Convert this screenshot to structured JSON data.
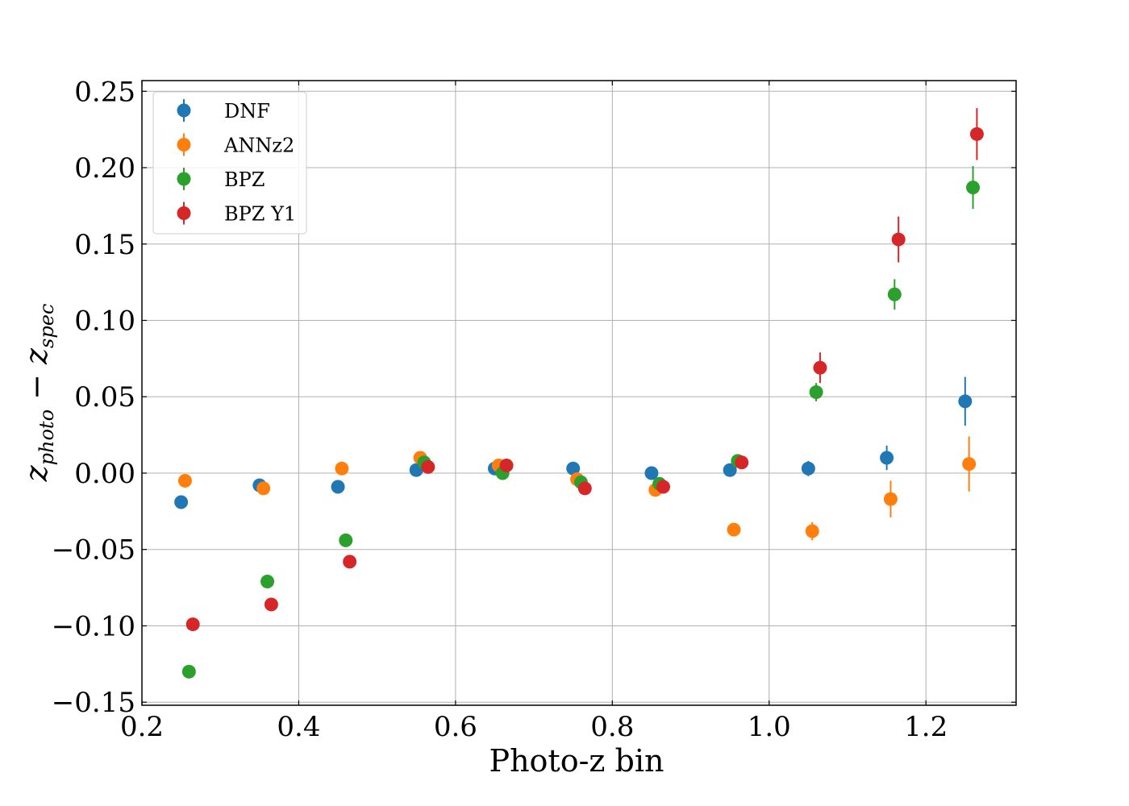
{
  "chart_data": {
    "type": "scatter",
    "title": "",
    "xlabel": "Photo-z bin",
    "ylabel": "z_photo − z_spec",
    "ylabel_main": "z",
    "ylabel_sub1": "photo",
    "ylabel_minus": " − ",
    "ylabel_main2": "z",
    "ylabel_sub2": "spec",
    "xlim": [
      0.2,
      1.315
    ],
    "ylim": [
      -0.152,
      0.257
    ],
    "xticks": [
      0.2,
      0.4,
      0.6,
      0.8,
      1.0,
      1.2
    ],
    "xtick_labels": [
      "0.2",
      "0.4",
      "0.6",
      "0.8",
      "1.0",
      "1.2"
    ],
    "yticks": [
      -0.15,
      -0.1,
      -0.05,
      0.0,
      0.05,
      0.1,
      0.15,
      0.2,
      0.25
    ],
    "ytick_labels": [
      "−0.15",
      "−0.10",
      "−0.05",
      "0.00",
      "0.05",
      "0.10",
      "0.15",
      "0.20",
      "0.25"
    ],
    "grid": true,
    "legend_position": "top-left",
    "series": [
      {
        "name": "DNF",
        "color": "#1f77b4",
        "x": [
          0.25,
          0.35,
          0.45,
          0.55,
          0.65,
          0.75,
          0.85,
          0.95,
          1.05,
          1.15,
          1.25
        ],
        "y": [
          -0.019,
          -0.008,
          -0.009,
          0.002,
          0.003,
          0.003,
          0.0,
          0.002,
          0.003,
          0.01,
          0.047
        ],
        "yerr": [
          0.002,
          0.002,
          0.002,
          0.002,
          0.002,
          0.002,
          0.002,
          0.002,
          0.005,
          0.008,
          0.016
        ]
      },
      {
        "name": "ANNz2",
        "color": "#ff7f0e",
        "x": [
          0.255,
          0.355,
          0.455,
          0.555,
          0.655,
          0.755,
          0.855,
          0.955,
          1.055,
          1.155,
          1.255
        ],
        "y": [
          -0.005,
          -0.01,
          0.003,
          0.01,
          0.005,
          -0.004,
          -0.011,
          -0.037,
          -0.038,
          -0.017,
          0.006
        ],
        "yerr": [
          0.002,
          0.002,
          0.002,
          0.002,
          0.002,
          0.002,
          0.002,
          0.003,
          0.006,
          0.012,
          0.018
        ]
      },
      {
        "name": "BPZ",
        "color": "#2ca02c",
        "x": [
          0.26,
          0.36,
          0.46,
          0.56,
          0.66,
          0.76,
          0.86,
          0.96,
          1.06,
          1.16,
          1.26
        ],
        "y": [
          -0.13,
          -0.071,
          -0.044,
          0.007,
          0.0,
          -0.006,
          -0.007,
          0.008,
          0.053,
          0.117,
          0.187
        ],
        "yerr": [
          0.002,
          0.002,
          0.002,
          0.002,
          0.002,
          0.002,
          0.002,
          0.002,
          0.006,
          0.01,
          0.014
        ]
      },
      {
        "name": "BPZ Y1",
        "color": "#d62728",
        "x": [
          0.265,
          0.365,
          0.465,
          0.565,
          0.665,
          0.765,
          0.865,
          0.965,
          1.065,
          1.165,
          1.265
        ],
        "y": [
          -0.099,
          -0.086,
          -0.058,
          0.004,
          0.005,
          -0.01,
          -0.009,
          0.007,
          0.069,
          0.153,
          0.222
        ],
        "yerr": [
          0.003,
          0.002,
          0.002,
          0.002,
          0.002,
          0.002,
          0.002,
          0.003,
          0.01,
          0.015,
          0.017
        ]
      }
    ]
  }
}
